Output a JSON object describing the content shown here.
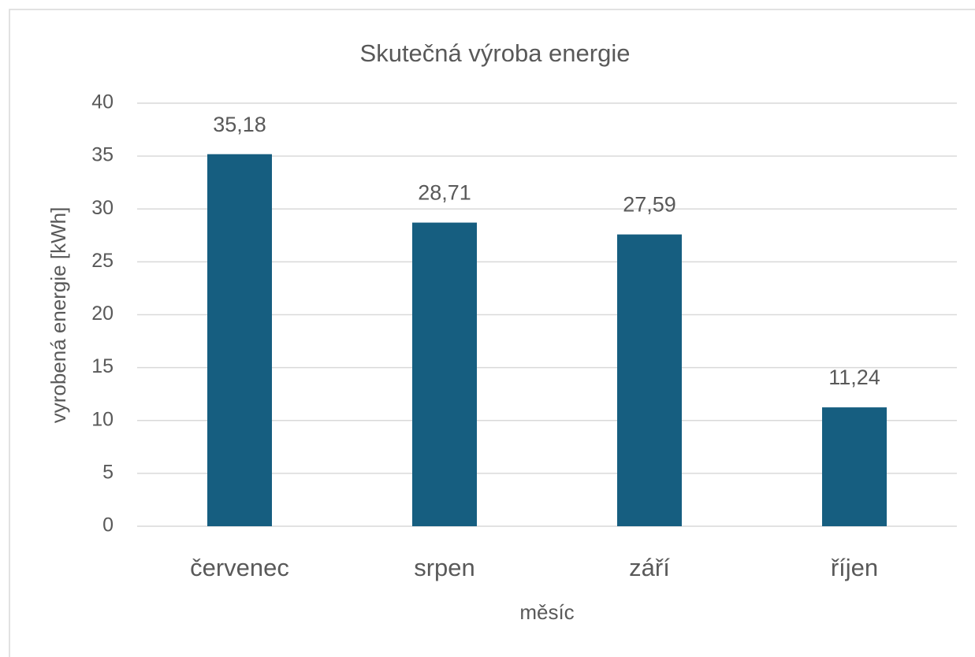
{
  "chart_data": {
    "type": "bar",
    "title": "Skutečná výroba energie",
    "x_label": "měsíc",
    "y_label": "vyrobená energie [kWh]",
    "categories": [
      "červenec",
      "srpen",
      "září",
      "říjen"
    ],
    "values": [
      35.18,
      28.71,
      27.59,
      11.24
    ],
    "value_labels": [
      "35,18",
      "28,71",
      "27,59",
      "11,24"
    ],
    "color": "#165e80",
    "ylim": [
      0,
      40
    ],
    "yticks": [
      0,
      5,
      10,
      15,
      20,
      25,
      30,
      35,
      40
    ],
    "grid": true
  }
}
